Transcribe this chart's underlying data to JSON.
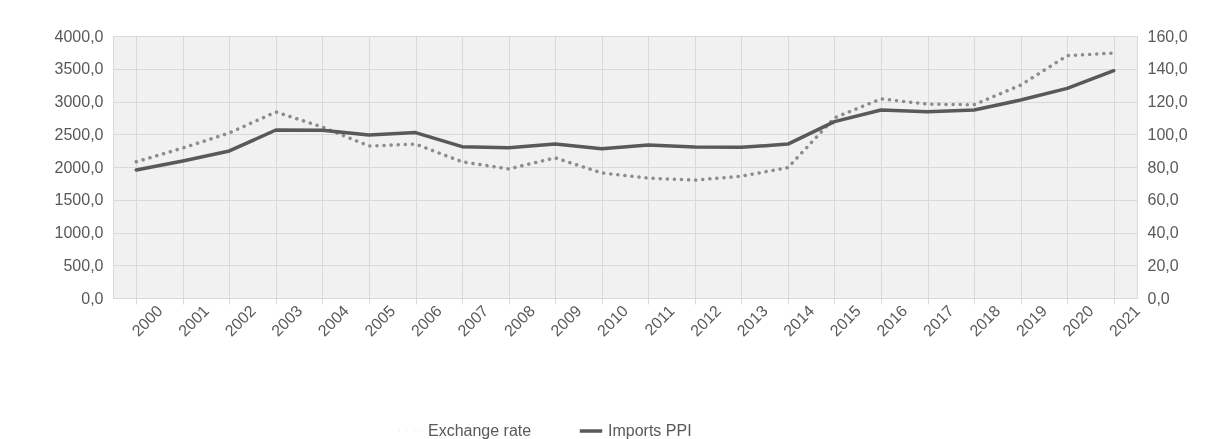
{
  "chart_data": {
    "type": "line",
    "categories": [
      "2000",
      "2001",
      "2002",
      "2003",
      "2004",
      "2005",
      "2006",
      "2007",
      "2008",
      "2009",
      "2010",
      "2011",
      "2012",
      "2013",
      "2014",
      "2015",
      "2016",
      "2017",
      "2018",
      "2019",
      "2020",
      "2021"
    ],
    "series": [
      {
        "name": "Exchange rate",
        "color": "#8c8c8c",
        "line_style": "dotted",
        "values": [
          2080,
          2290,
          2520,
          2840,
          2610,
          2320,
          2350,
          2080,
          1970,
          2140,
          1910,
          1830,
          1800,
          1860,
          1990,
          2750,
          3040,
          2960,
          2950,
          3250,
          3700,
          3740
        ]
      },
      {
        "name": "Imports PPI",
        "color": "#595959",
        "line_style": "solid",
        "axis": "y2",
        "values": [
          78.2,
          83.7,
          89.8,
          102.6,
          102.4,
          99.5,
          101.0,
          92.4,
          91.8,
          94.0,
          91.2,
          93.4,
          92.2,
          92.0,
          94.0,
          107.7,
          114.8,
          113.8,
          114.8,
          120.9,
          128.0,
          138.8
        ]
      }
    ],
    "ylim": [
      0,
      4000
    ],
    "yticks": [
      {
        "value": 0,
        "label": "0,0"
      },
      {
        "value": 500,
        "label": "500,0"
      },
      {
        "value": 1000,
        "label": "1000,0"
      },
      {
        "value": 1500,
        "label": "1500,0"
      },
      {
        "value": 2000,
        "label": "2000,0"
      },
      {
        "value": 2500,
        "label": "2500,0"
      },
      {
        "value": 3000,
        "label": "3000,0"
      },
      {
        "value": 3500,
        "label": "3500,0"
      },
      {
        "value": 4000,
        "label": "4000,0"
      }
    ],
    "y2lim": [
      0,
      160
    ],
    "y2ticks": [
      {
        "value": 0,
        "label": "0,0"
      },
      {
        "value": 20,
        "label": "20,0"
      },
      {
        "value": 40,
        "label": "40,0"
      },
      {
        "value": 60,
        "label": "60,0"
      },
      {
        "value": 80,
        "label": "80,0"
      },
      {
        "value": 100,
        "label": "100,0"
      },
      {
        "value": 120,
        "label": "120,0"
      },
      {
        "value": 140,
        "label": "140,0"
      },
      {
        "value": 160,
        "label": "160,0"
      }
    ],
    "grid": true,
    "legend": "bottom"
  }
}
